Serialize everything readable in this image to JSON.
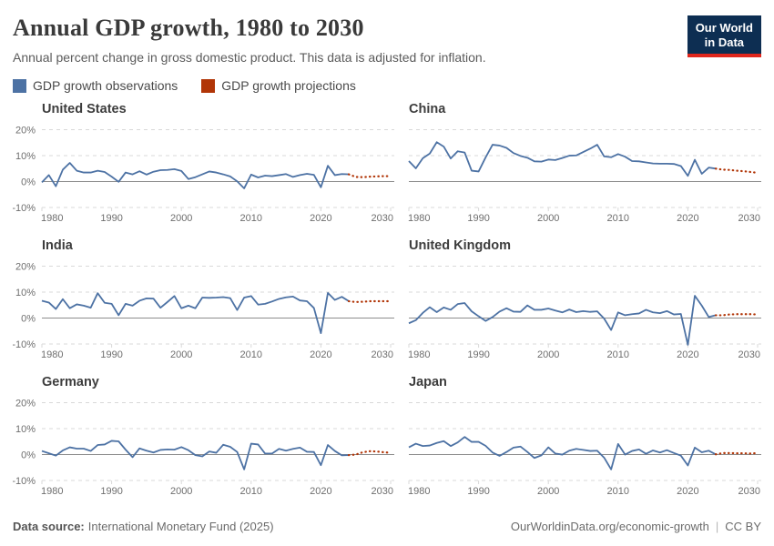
{
  "header": {
    "title": "Annual GDP growth, 1980 to 2030",
    "subtitle": "Annual percent change in gross domestic product. This data is adjusted for inflation.",
    "logo": {
      "line1": "Our World",
      "line2": "in Data"
    }
  },
  "legend": [
    {
      "label": "GDP growth observations",
      "color": "#4d72a4"
    },
    {
      "label": "GDP growth projections",
      "color": "#b13507"
    }
  ],
  "footer": {
    "source_label": "Data source:",
    "source": "International Monetary Fund (2025)",
    "right_link": "OurWorldinData.org/economic-growth",
    "divider": "|",
    "license": "CC BY"
  },
  "colors": {
    "observations": "#4d72a4",
    "projections": "#b13507",
    "gridline": "#d9d9d9",
    "zero_line": "#8c8c8c",
    "tick_label": "#6e6e6e"
  },
  "chart_data": {
    "type": "line",
    "unit": "%",
    "start_year": 1980,
    "projection_start_year": 2025,
    "x_range": [
      1980,
      2030
    ],
    "x_ticks": [
      1980,
      1990,
      2000,
      2010,
      2020,
      2030
    ],
    "y_ticks": [
      20,
      10,
      0,
      -10
    ],
    "ylim": [
      -13,
      23
    ],
    "grid": "dashed-horizontal",
    "legend_position": "top",
    "series_names": [
      "GDP growth observations",
      "GDP growth projections"
    ],
    "panels": [
      {
        "title": "United States",
        "show_y_labels": true,
        "observations": [
          -0.3,
          2.5,
          -1.8,
          4.6,
          7.2,
          4.2,
          3.5,
          3.5,
          4.2,
          3.7,
          1.9,
          -0.1,
          3.5,
          2.8,
          4.0,
          2.7,
          3.8,
          4.4,
          4.5,
          4.8,
          4.1,
          1.0,
          1.7,
          2.8,
          3.9,
          3.5,
          2.8,
          2.0,
          0.1,
          -2.6,
          2.7,
          1.6,
          2.3,
          2.1,
          2.5,
          2.9,
          1.8,
          2.5,
          3.0,
          2.6,
          -2.2,
          6.1,
          2.5,
          2.9,
          2.8
        ],
        "projections": [
          1.8,
          1.7,
          1.9,
          2.0,
          2.1,
          2.1
        ]
      },
      {
        "title": "China",
        "show_y_labels": false,
        "observations": [
          7.9,
          5.1,
          9.0,
          10.8,
          15.2,
          13.5,
          8.9,
          11.7,
          11.2,
          4.2,
          3.9,
          9.3,
          14.2,
          13.9,
          13.0,
          11.0,
          9.9,
          9.2,
          7.8,
          7.7,
          8.5,
          8.3,
          9.1,
          10.0,
          10.1,
          11.4,
          12.7,
          14.2,
          9.7,
          9.4,
          10.6,
          9.6,
          7.9,
          7.8,
          7.4,
          7.0,
          6.9,
          6.9,
          6.8,
          6.0,
          2.2,
          8.4,
          3.0,
          5.4,
          5.0
        ],
        "projections": [
          4.6,
          4.5,
          4.2,
          4.0,
          3.7,
          3.4
        ]
      },
      {
        "title": "India",
        "show_y_labels": true,
        "observations": [
          6.7,
          6.0,
          3.5,
          7.3,
          3.8,
          5.3,
          4.8,
          4.0,
          9.6,
          5.9,
          5.5,
          1.1,
          5.5,
          4.8,
          6.7,
          7.6,
          7.5,
          4.0,
          6.2,
          8.5,
          3.8,
          4.8,
          3.8,
          7.9,
          7.8,
          7.9,
          8.1,
          7.7,
          3.1,
          7.9,
          8.5,
          5.2,
          5.5,
          6.4,
          7.4,
          8.0,
          8.3,
          6.8,
          6.5,
          3.9,
          -5.8,
          9.7,
          7.0,
          8.2,
          6.5
        ],
        "projections": [
          6.2,
          6.3,
          6.5,
          6.5,
          6.5,
          6.5
        ]
      },
      {
        "title": "United Kingdom",
        "show_y_labels": false,
        "observations": [
          -2.0,
          -0.8,
          2.0,
          4.2,
          2.3,
          4.1,
          3.2,
          5.4,
          5.8,
          2.6,
          0.7,
          -1.1,
          0.4,
          2.5,
          3.8,
          2.5,
          2.4,
          4.9,
          3.2,
          3.2,
          3.7,
          2.9,
          2.2,
          3.3,
          2.3,
          2.7,
          2.4,
          2.6,
          -0.2,
          -4.6,
          2.2,
          1.1,
          1.5,
          1.8,
          3.2,
          2.2,
          1.9,
          2.7,
          1.4,
          1.6,
          -10.3,
          8.6,
          4.8,
          0.4,
          1.1
        ],
        "projections": [
          1.1,
          1.4,
          1.5,
          1.5,
          1.5,
          1.4
        ]
      },
      {
        "title": "Germany",
        "show_y_labels": true,
        "observations": [
          1.4,
          0.5,
          -0.4,
          1.6,
          2.8,
          2.3,
          2.3,
          1.4,
          3.7,
          3.9,
          5.3,
          5.1,
          1.9,
          -1.0,
          2.4,
          1.5,
          0.8,
          1.8,
          2.0,
          1.9,
          2.9,
          1.7,
          -0.2,
          -0.7,
          1.2,
          0.7,
          3.8,
          3.0,
          1.0,
          -5.7,
          4.2,
          3.9,
          0.4,
          0.4,
          2.2,
          1.5,
          2.2,
          2.7,
          1.1,
          1.0,
          -4.1,
          3.7,
          1.4,
          -0.3,
          -0.2
        ],
        "projections": [
          0.0,
          0.9,
          1.3,
          1.2,
          0.9,
          0.7
        ]
      },
      {
        "title": "Japan",
        "show_y_labels": false,
        "observations": [
          2.8,
          4.2,
          3.3,
          3.5,
          4.5,
          5.2,
          3.3,
          4.7,
          6.8,
          4.9,
          4.9,
          3.4,
          0.8,
          -0.5,
          1.0,
          2.7,
          3.1,
          1.0,
          -1.3,
          -0.3,
          2.8,
          0.4,
          0.0,
          1.5,
          2.2,
          1.8,
          1.4,
          1.5,
          -1.2,
          -5.7,
          4.1,
          0.0,
          1.4,
          2.0,
          0.3,
          1.6,
          0.8,
          1.7,
          0.6,
          -0.4,
          -4.2,
          2.7,
          0.9,
          1.5,
          0.1
        ],
        "projections": [
          0.6,
          0.6,
          0.5,
          0.5,
          0.4,
          0.6
        ]
      }
    ]
  }
}
